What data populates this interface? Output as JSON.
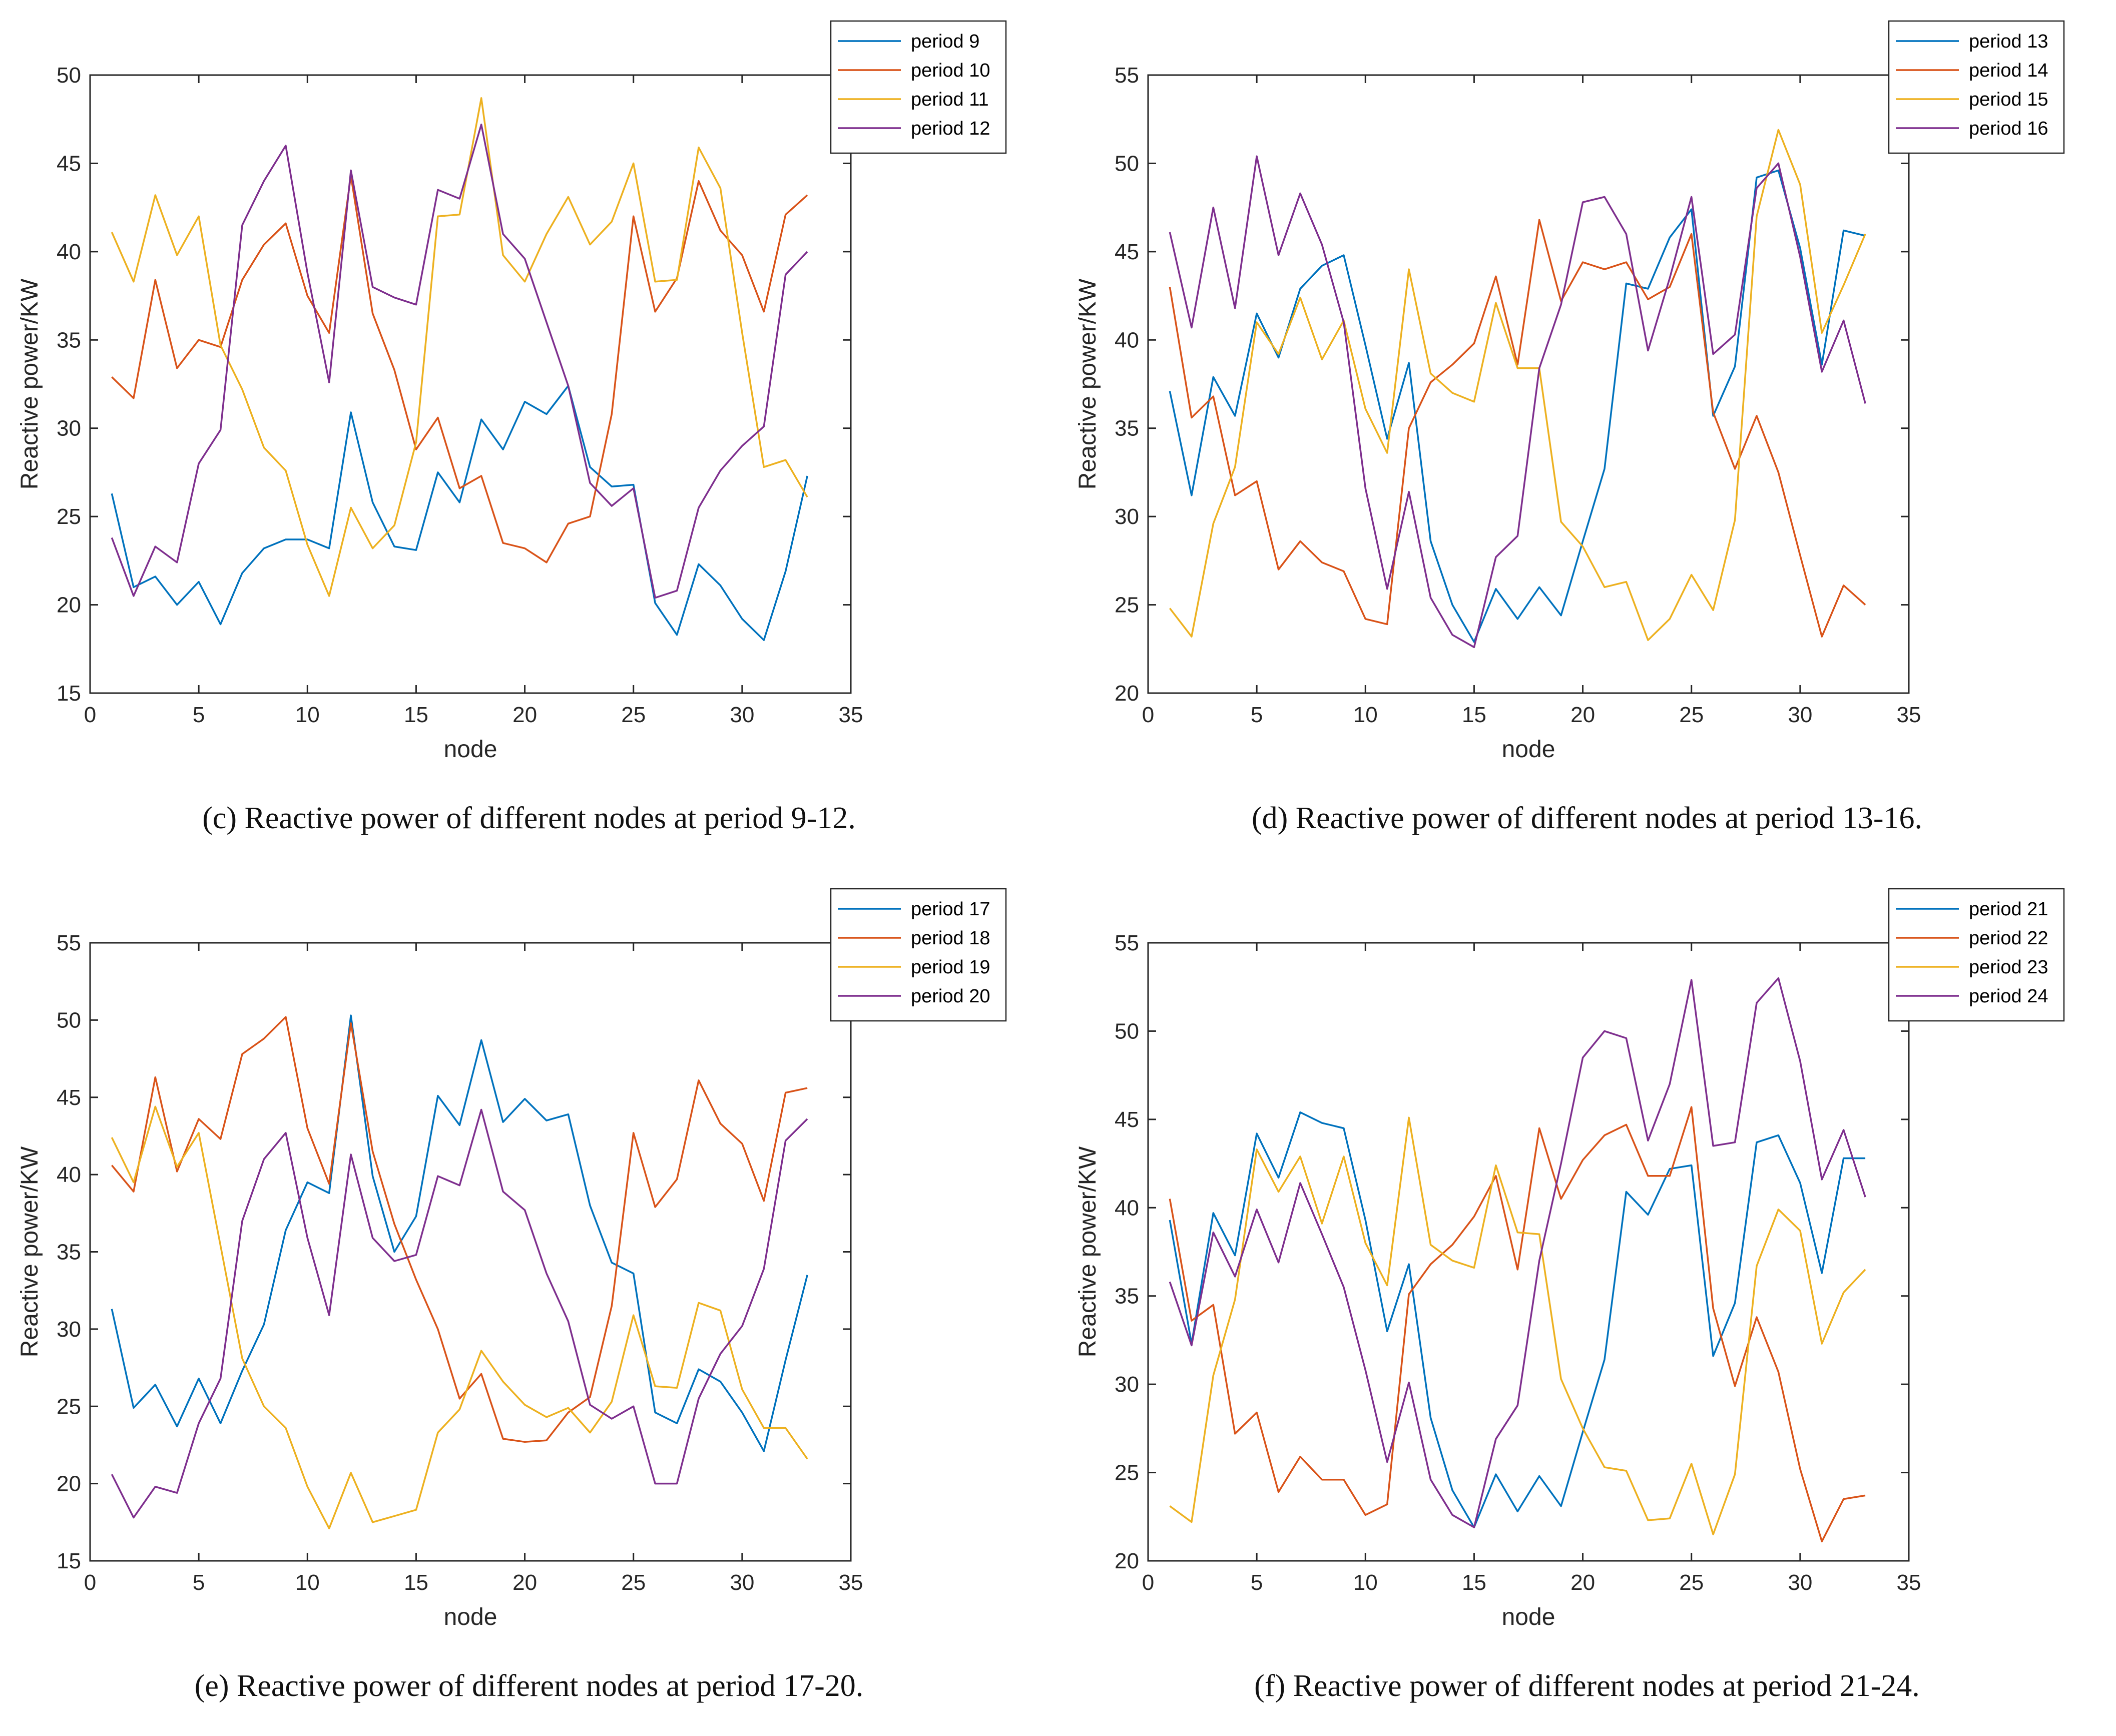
{
  "colors": {
    "series": [
      "#0072BD",
      "#D95319",
      "#EDB120",
      "#7E2F8E"
    ],
    "axis": "#262626",
    "caption": "#111111"
  },
  "chart_data": [
    {
      "type": "line",
      "caption": "(c)  Reactive power of different nodes at period 9-12.",
      "xlabel": "node",
      "ylabel": "Reactive power/KW",
      "xlim": [
        0,
        35
      ],
      "ylim": [
        15,
        50
      ],
      "xticks": [
        "0",
        "5",
        "10",
        "15",
        "20",
        "25",
        "30",
        "35"
      ],
      "yticks": [
        "15",
        "20",
        "25",
        "30",
        "35",
        "40",
        "45",
        "50"
      ],
      "legend_position": "top-right",
      "x": [
        1,
        2,
        3,
        4,
        5,
        6,
        7,
        8,
        9,
        10,
        11,
        12,
        13,
        14,
        15,
        16,
        17,
        18,
        19,
        20,
        21,
        22,
        23,
        24,
        25,
        26,
        27,
        28,
        29,
        30,
        31,
        32,
        33
      ],
      "series": [
        {
          "name": "period 9",
          "values": [
            26.3,
            21.0,
            21.6,
            20.0,
            21.3,
            18.9,
            21.8,
            23.2,
            23.7,
            23.7,
            23.2,
            30.9,
            25.8,
            23.3,
            23.1,
            27.5,
            25.8,
            30.5,
            28.8,
            31.5,
            30.8,
            32.4,
            27.8,
            26.7,
            26.8,
            20.1,
            18.3,
            22.3,
            21.1,
            19.2,
            18.0,
            21.9,
            27.3
          ]
        },
        {
          "name": "period 10",
          "values": [
            32.9,
            31.7,
            38.4,
            33.4,
            35.0,
            34.6,
            38.4,
            40.4,
            41.6,
            37.5,
            35.4,
            44.3,
            36.5,
            33.3,
            28.8,
            30.6,
            26.6,
            27.3,
            23.5,
            23.2,
            22.4,
            24.6,
            25.0,
            30.8,
            42.0,
            36.6,
            38.5,
            44.0,
            41.2,
            39.8,
            36.6,
            42.1,
            43.2
          ]
        },
        {
          "name": "period 11",
          "values": [
            41.1,
            38.3,
            43.2,
            39.8,
            42.0,
            34.7,
            32.2,
            28.9,
            27.6,
            23.4,
            20.5,
            25.5,
            23.2,
            24.5,
            29.2,
            42.0,
            42.1,
            48.7,
            39.8,
            38.3,
            41.0,
            43.1,
            40.4,
            41.7,
            45.0,
            38.3,
            38.4,
            45.9,
            43.6,
            35.4,
            27.8,
            28.2,
            26.1
          ]
        },
        {
          "name": "period 12",
          "values": [
            23.8,
            20.5,
            23.3,
            22.4,
            28.0,
            29.9,
            41.5,
            44.0,
            46.0,
            38.8,
            32.6,
            44.6,
            38.0,
            37.4,
            37.0,
            43.5,
            43.0,
            47.2,
            41.0,
            39.6,
            36.0,
            32.4,
            26.9,
            25.6,
            26.6,
            20.4,
            20.8,
            25.5,
            27.6,
            29.0,
            30.1,
            38.7,
            40.0
          ]
        }
      ]
    },
    {
      "type": "line",
      "caption": "(d)  Reactive power of different nodes at period 13-16.",
      "xlabel": "node",
      "ylabel": "Reactive power/KW",
      "xlim": [
        0,
        35
      ],
      "ylim": [
        20,
        55
      ],
      "xticks": [
        "0",
        "5",
        "10",
        "15",
        "20",
        "25",
        "30",
        "35"
      ],
      "yticks": [
        "20",
        "25",
        "30",
        "35",
        "40",
        "45",
        "50",
        "55"
      ],
      "legend_position": "top-right",
      "x": [
        1,
        2,
        3,
        4,
        5,
        6,
        7,
        8,
        9,
        10,
        11,
        12,
        13,
        14,
        15,
        16,
        17,
        18,
        19,
        20,
        21,
        22,
        23,
        24,
        25,
        26,
        27,
        28,
        29,
        30,
        31,
        32,
        33
      ],
      "series": [
        {
          "name": "period 13",
          "values": [
            37.1,
            31.2,
            37.9,
            35.7,
            41.5,
            39.0,
            42.9,
            44.2,
            44.8,
            39.7,
            34.4,
            38.7,
            28.6,
            25.0,
            22.9,
            25.9,
            24.2,
            26.0,
            24.4,
            28.6,
            32.7,
            43.2,
            42.9,
            45.8,
            47.4,
            35.7,
            38.5,
            49.2,
            49.6,
            45.2,
            38.6,
            46.2,
            45.9
          ]
        },
        {
          "name": "period 14",
          "values": [
            43.0,
            35.6,
            36.8,
            31.2,
            32.0,
            27.0,
            28.6,
            27.4,
            26.9,
            24.2,
            23.9,
            35.0,
            37.6,
            38.6,
            39.8,
            43.6,
            38.6,
            46.8,
            42.2,
            44.4,
            44.0,
            44.4,
            42.3,
            43.0,
            46.0,
            35.9,
            32.7,
            35.7,
            32.5,
            27.8,
            23.2,
            26.1,
            25.0
          ]
        },
        {
          "name": "period 15",
          "values": [
            24.8,
            23.2,
            29.6,
            32.8,
            41.0,
            39.2,
            42.4,
            38.9,
            41.1,
            36.1,
            33.6,
            44.0,
            38.1,
            37.0,
            36.5,
            42.1,
            38.4,
            38.4,
            29.7,
            28.3,
            26.0,
            26.3,
            23.0,
            24.2,
            26.7,
            24.7,
            29.8,
            47.0,
            51.9,
            48.8,
            40.4,
            43.1,
            46.0
          ]
        },
        {
          "name": "period 16",
          "values": [
            46.1,
            40.7,
            47.5,
            41.8,
            50.4,
            44.8,
            48.3,
            45.4,
            41.0,
            31.6,
            25.9,
            31.4,
            25.4,
            23.3,
            22.6,
            27.7,
            28.9,
            38.4,
            42.0,
            47.8,
            48.1,
            46.0,
            39.4,
            43.5,
            48.1,
            39.2,
            40.3,
            48.6,
            50.0,
            44.7,
            38.2,
            41.1,
            36.4
          ]
        }
      ]
    },
    {
      "type": "line",
      "caption": "(e)  Reactive power of different nodes at period 17-20.",
      "xlabel": "node",
      "ylabel": "Reactive power/KW",
      "xlim": [
        0,
        35
      ],
      "ylim": [
        15,
        55
      ],
      "xticks": [
        "0",
        "5",
        "10",
        "15",
        "20",
        "25",
        "30",
        "35"
      ],
      "yticks": [
        "15",
        "20",
        "25",
        "30",
        "35",
        "40",
        "45",
        "50",
        "55"
      ],
      "legend_position": "top-right",
      "x": [
        1,
        2,
        3,
        4,
        5,
        6,
        7,
        8,
        9,
        10,
        11,
        12,
        13,
        14,
        15,
        16,
        17,
        18,
        19,
        20,
        21,
        22,
        23,
        24,
        25,
        26,
        27,
        28,
        29,
        30,
        31,
        32,
        33
      ],
      "series": [
        {
          "name": "period 17",
          "values": [
            31.3,
            24.9,
            26.4,
            23.7,
            26.8,
            23.9,
            27.3,
            30.3,
            36.4,
            39.5,
            38.8,
            50.3,
            39.9,
            35.0,
            37.3,
            45.1,
            43.2,
            48.7,
            43.4,
            44.9,
            43.5,
            43.9,
            38.0,
            34.3,
            33.6,
            24.6,
            23.9,
            27.4,
            26.6,
            24.6,
            22.1,
            28.0,
            33.5
          ]
        },
        {
          "name": "period 18",
          "values": [
            40.6,
            38.9,
            46.3,
            40.2,
            43.6,
            42.3,
            47.8,
            48.8,
            50.2,
            43.0,
            39.4,
            49.8,
            41.5,
            36.8,
            33.2,
            30.0,
            25.5,
            27.1,
            22.9,
            22.7,
            22.8,
            24.6,
            25.6,
            31.5,
            42.7,
            37.9,
            39.7,
            46.1,
            43.3,
            42.0,
            38.3,
            45.3,
            45.6
          ]
        },
        {
          "name": "period 19",
          "values": [
            42.4,
            39.5,
            44.4,
            40.5,
            42.7,
            35.4,
            28.1,
            25.0,
            23.6,
            19.8,
            17.1,
            20.7,
            17.5,
            17.9,
            18.3,
            23.3,
            24.8,
            28.6,
            26.6,
            25.1,
            24.3,
            24.9,
            23.3,
            25.3,
            30.9,
            26.3,
            26.2,
            31.7,
            31.2,
            26.1,
            23.6,
            23.6,
            21.6
          ]
        },
        {
          "name": "period 20",
          "values": [
            20.6,
            17.8,
            19.8,
            19.4,
            23.9,
            26.8,
            37.0,
            41.0,
            42.7,
            35.9,
            30.9,
            41.3,
            35.9,
            34.4,
            34.8,
            39.9,
            39.3,
            44.2,
            38.9,
            37.7,
            33.6,
            30.5,
            25.1,
            24.2,
            25.0,
            20.0,
            20.0,
            25.5,
            28.4,
            30.2,
            33.9,
            42.2,
            43.6
          ]
        }
      ]
    },
    {
      "type": "line",
      "caption": "(f)  Reactive power of different nodes at period 21-24.",
      "xlabel": "node",
      "ylabel": "Reactive power/KW",
      "xlim": [
        0,
        35
      ],
      "ylim": [
        20,
        55
      ],
      "xticks": [
        "0",
        "5",
        "10",
        "15",
        "20",
        "25",
        "30",
        "35"
      ],
      "yticks": [
        "20",
        "25",
        "30",
        "35",
        "40",
        "45",
        "50",
        "55"
      ],
      "legend_position": "top-right",
      "x": [
        1,
        2,
        3,
        4,
        5,
        6,
        7,
        8,
        9,
        10,
        11,
        12,
        13,
        14,
        15,
        16,
        17,
        18,
        19,
        20,
        21,
        22,
        23,
        24,
        25,
        26,
        27,
        28,
        29,
        30,
        31,
        32,
        33
      ],
      "series": [
        {
          "name": "period 21",
          "values": [
            39.3,
            32.3,
            39.7,
            37.3,
            44.2,
            41.7,
            45.4,
            44.8,
            44.5,
            39.3,
            33.0,
            36.8,
            28.1,
            24.0,
            21.9,
            24.9,
            22.8,
            24.8,
            23.1,
            27.3,
            31.4,
            40.9,
            39.6,
            42.2,
            42.4,
            31.6,
            34.6,
            43.7,
            44.1,
            41.4,
            36.3,
            42.8,
            42.8
          ]
        },
        {
          "name": "period 22",
          "values": [
            40.5,
            33.6,
            34.5,
            27.2,
            28.4,
            23.9,
            25.9,
            24.6,
            24.6,
            22.6,
            23.2,
            35.1,
            36.8,
            37.9,
            39.5,
            41.8,
            36.5,
            44.5,
            40.5,
            42.7,
            44.1,
            44.7,
            41.8,
            41.8,
            45.7,
            34.3,
            29.9,
            33.8,
            30.7,
            25.2,
            21.1,
            23.5,
            23.7
          ]
        },
        {
          "name": "period 23",
          "values": [
            23.1,
            22.2,
            30.5,
            34.8,
            43.3,
            40.9,
            42.9,
            39.1,
            42.9,
            38.0,
            35.6,
            45.1,
            37.9,
            37.0,
            36.6,
            42.4,
            38.6,
            38.5,
            30.3,
            27.5,
            25.3,
            25.1,
            22.3,
            22.4,
            25.5,
            21.5,
            24.9,
            36.7,
            39.9,
            38.7,
            32.3,
            35.2,
            36.5
          ]
        },
        {
          "name": "period 24",
          "values": [
            35.8,
            32.2,
            38.6,
            36.1,
            39.9,
            36.9,
            41.4,
            38.5,
            35.5,
            30.8,
            25.6,
            30.1,
            24.6,
            22.6,
            21.9,
            26.9,
            28.8,
            37.0,
            42.5,
            48.5,
            50.0,
            49.6,
            43.8,
            47.0,
            52.9,
            43.5,
            43.7,
            51.6,
            53.0,
            48.3,
            41.6,
            44.4,
            40.6
          ]
        }
      ]
    }
  ]
}
